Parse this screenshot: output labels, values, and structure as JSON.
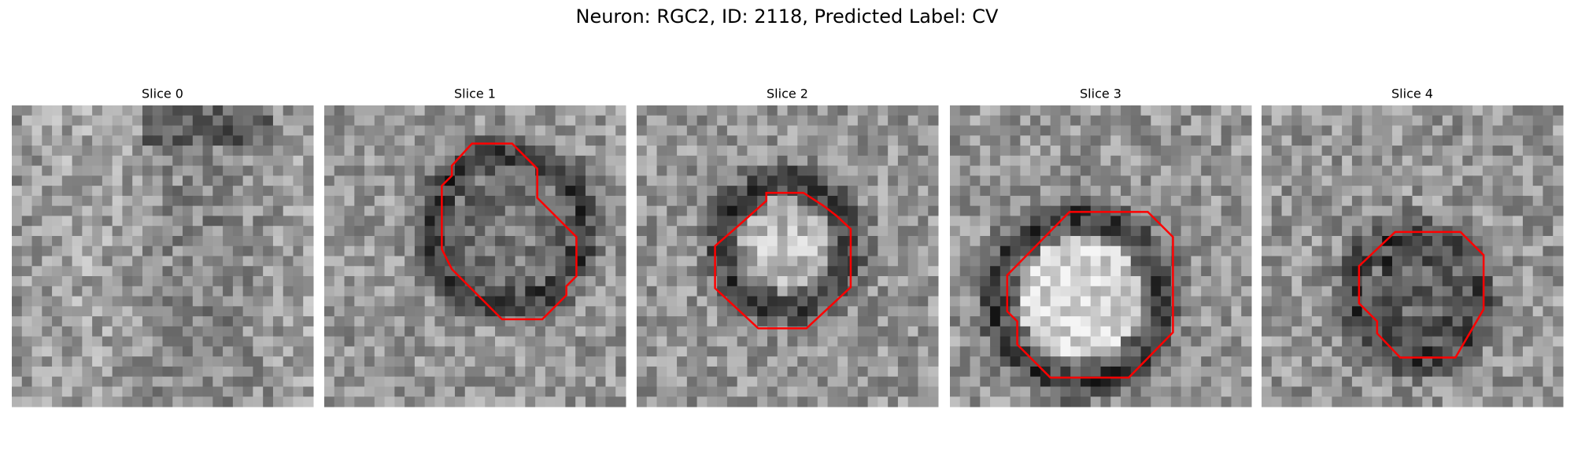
{
  "title": "Neuron: RGC2, ID: 2118, Predicted Label: CV",
  "panels": [
    {
      "title": "Slice 0"
    },
    {
      "title": "Slice 1"
    },
    {
      "title": "Slice 2"
    },
    {
      "title": "Slice 3"
    },
    {
      "title": "Slice 4"
    }
  ]
}
